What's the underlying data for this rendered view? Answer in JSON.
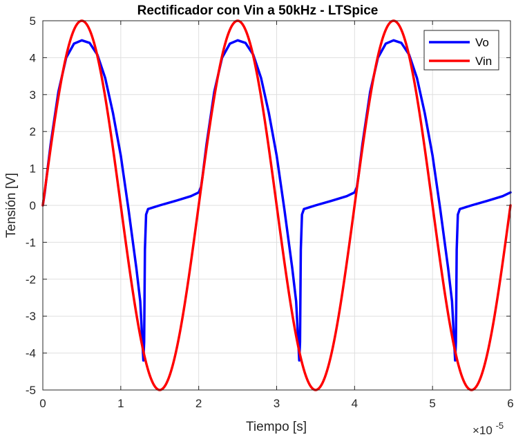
{
  "chart_data": {
    "type": "line",
    "title": "Rectificador con Vin a 50kHz - LTSpice",
    "xlabel": "Tiempo [s]",
    "ylabel": "Tensión [V]",
    "xlim": [
      0,
      6e-05
    ],
    "ylim": [
      -5,
      5
    ],
    "x_exponent_label": "×10",
    "x_exponent": "-5",
    "x_tick_labels": [
      "0",
      "1",
      "2",
      "3",
      "4",
      "5",
      "6"
    ],
    "y_tick_labels": [
      "5",
      "4",
      "3",
      "2",
      "1",
      "0",
      "-1",
      "-2",
      "-3",
      "-4",
      "-5"
    ],
    "grid": true,
    "legend_position": "top-right",
    "series": [
      {
        "name": "Vo",
        "color": "#0000ff",
        "points": [
          [
            0,
            0
          ],
          [
            2.5e-07,
            0.35
          ],
          [
            5e-07,
            0.8
          ],
          [
            1e-06,
            1.65
          ],
          [
            2e-06,
            3.08
          ],
          [
            3e-06,
            4.0
          ],
          [
            4e-06,
            4.38
          ],
          [
            5e-06,
            4.47
          ],
          [
            6e-06,
            4.4
          ],
          [
            7e-06,
            4.08
          ],
          [
            8e-06,
            3.45
          ],
          [
            9e-06,
            2.5
          ],
          [
            1e-05,
            1.35
          ],
          [
            1.1e-05,
            -0.12
          ],
          [
            1.2e-05,
            -1.7
          ],
          [
            1.25e-05,
            -2.6
          ],
          [
            1.29e-05,
            -4.2
          ],
          [
            1.3e-05,
            -3.7
          ],
          [
            1.31e-05,
            -1.2
          ],
          [
            1.325e-05,
            -0.25
          ],
          [
            1.35e-05,
            -0.1
          ],
          [
            1.5e-05,
            0.0
          ],
          [
            1.7e-05,
            0.12
          ],
          [
            1.9e-05,
            0.25
          ],
          [
            2e-05,
            0.35
          ],
          [
            2.03e-05,
            0.5
          ],
          [
            2.05e-05,
            0.8
          ],
          [
            2.1e-05,
            1.65
          ],
          [
            2.2e-05,
            3.08
          ],
          [
            2.3e-05,
            4.0
          ],
          [
            2.4e-05,
            4.38
          ],
          [
            2.5e-05,
            4.47
          ],
          [
            2.6e-05,
            4.4
          ],
          [
            2.7e-05,
            4.08
          ],
          [
            2.8e-05,
            3.45
          ],
          [
            2.9e-05,
            2.5
          ],
          [
            3e-05,
            1.35
          ],
          [
            3.1e-05,
            -0.12
          ],
          [
            3.2e-05,
            -1.7
          ],
          [
            3.25e-05,
            -2.6
          ],
          [
            3.29e-05,
            -4.2
          ],
          [
            3.3e-05,
            -3.7
          ],
          [
            3.31e-05,
            -1.2
          ],
          [
            3.325e-05,
            -0.25
          ],
          [
            3.35e-05,
            -0.1
          ],
          [
            3.5e-05,
            0.0
          ],
          [
            3.7e-05,
            0.12
          ],
          [
            3.9e-05,
            0.25
          ],
          [
            4e-05,
            0.35
          ],
          [
            4.03e-05,
            0.5
          ],
          [
            4.05e-05,
            0.8
          ],
          [
            4.1e-05,
            1.65
          ],
          [
            4.2e-05,
            3.08
          ],
          [
            4.3e-05,
            4.0
          ],
          [
            4.4e-05,
            4.38
          ],
          [
            4.5e-05,
            4.47
          ],
          [
            4.6e-05,
            4.4
          ],
          [
            4.7e-05,
            4.08
          ],
          [
            4.8e-05,
            3.45
          ],
          [
            4.9e-05,
            2.5
          ],
          [
            5e-05,
            1.35
          ],
          [
            5.1e-05,
            -0.12
          ],
          [
            5.2e-05,
            -1.7
          ],
          [
            5.25e-05,
            -2.6
          ],
          [
            5.29e-05,
            -4.2
          ],
          [
            5.3e-05,
            -3.7
          ],
          [
            5.31e-05,
            -1.2
          ],
          [
            5.325e-05,
            -0.25
          ],
          [
            5.35e-05,
            -0.1
          ],
          [
            5.5e-05,
            0.0
          ],
          [
            5.7e-05,
            0.12
          ],
          [
            5.9e-05,
            0.25
          ],
          [
            6e-05,
            0.35
          ]
        ]
      },
      {
        "name": "Vin",
        "color": "#ff0000",
        "amplitude": 5,
        "frequency_hz": 50000
      }
    ]
  }
}
